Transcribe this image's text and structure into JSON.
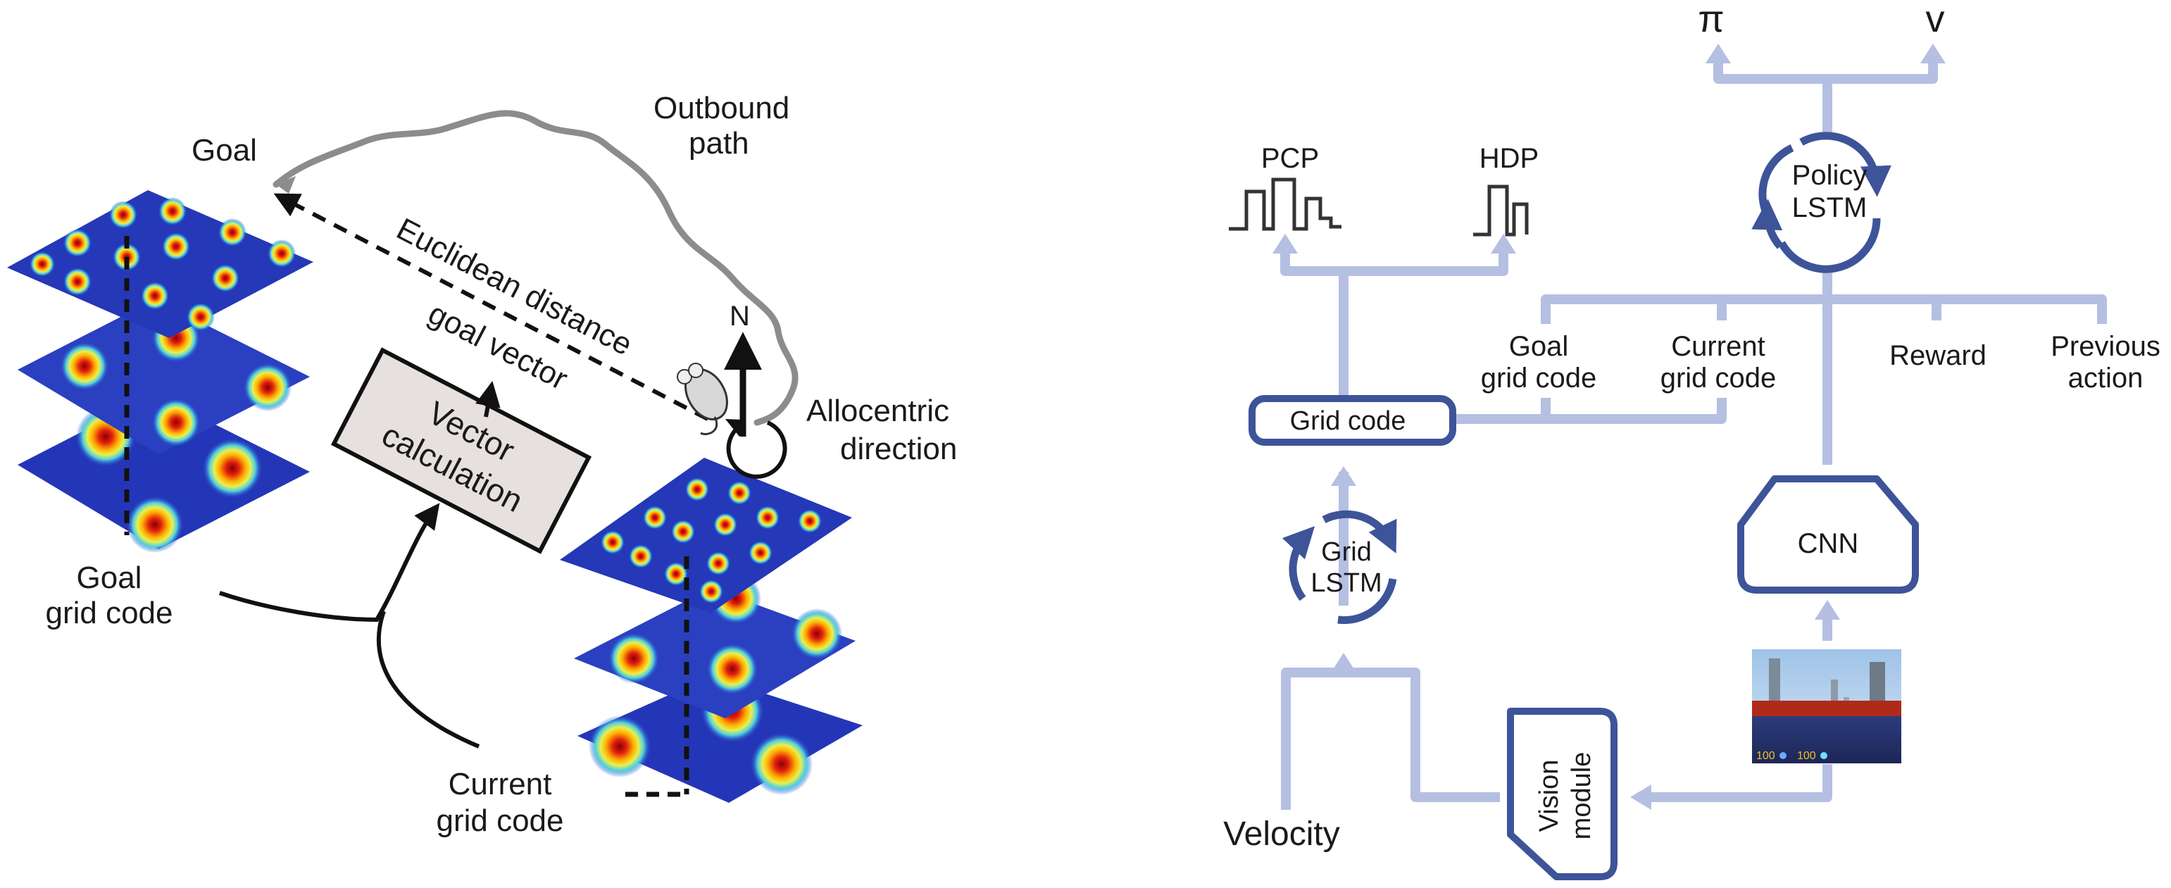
{
  "left_panel": {
    "goal_label": "Goal",
    "outbound_path_line1": "Outbound",
    "outbound_path_line2": "path",
    "euclidean_distance_label": "Euclidean distance",
    "goal_vector_label": "goal vector",
    "north_label": "N",
    "allocentric_line1": "Allocentric",
    "allocentric_line2": "direction",
    "vector_calc_line1": "Vector",
    "vector_calc_line2": "calculation",
    "goal_grid_code_line1": "Goal",
    "goal_grid_code_line2": "grid code",
    "current_grid_code_line1": "Current",
    "current_grid_code_line2": "grid code"
  },
  "right_panel": {
    "pi_label": "π",
    "v_label": "v",
    "pcp_label": "PCP",
    "hdp_label": "HDP",
    "policy_lstm_line1": "Policy",
    "policy_lstm_line2": "LSTM",
    "grid_code_box": "Grid code",
    "goal_grid_code_line1": "Goal",
    "goal_grid_code_line2": "grid code",
    "current_grid_code_line1": "Current",
    "current_grid_code_line2": "grid code",
    "reward_label": "Reward",
    "previous_action_line1": "Previous",
    "previous_action_line2": "action",
    "cnn_label": "CNN",
    "grid_lstm_line1": "Grid",
    "grid_lstm_line2": "LSTM",
    "velocity_label": "Velocity",
    "vision_module_line1": "Vision",
    "vision_module_line2": "module",
    "hud_left": "100",
    "hud_right": "100"
  },
  "colors": {
    "arrow_light_blue": "#b4bfe2",
    "module_dark_blue": "#3d5499",
    "text_dark": "#1a1a1a",
    "vector_box_fill": "#e6e0de"
  }
}
